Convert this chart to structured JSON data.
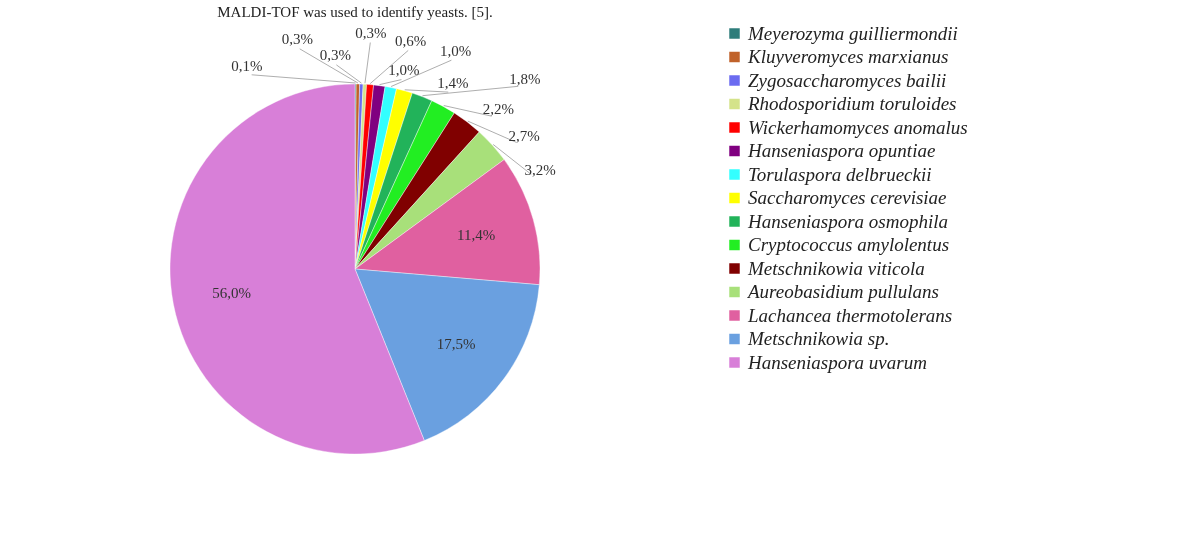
{
  "chart_data": {
    "type": "pie",
    "annotations": [
      "MALDI-TOF was used to identify yeasts. [5]."
    ],
    "categories": [
      "Meyerozyma guilliermondii",
      "Kluyveromyces marxianus",
      "Zygosaccharomyces bailii",
      "Rhodosporidium toruloides",
      "Wickerhamomyces anomalus",
      "Hanseniaspora opuntiae",
      "Torulaspora delbrueckii",
      "Saccharomyces cerevisiae",
      "Hanseniaspora osmophila",
      "Cryptococcus amylolentus",
      "Metschnikowia viticola",
      "Aureobasidium pullulans",
      "Lachancea thermotolerans",
      "Metschnikowia sp.",
      "Hanseniaspora uvarum"
    ],
    "values": [
      0.1,
      0.3,
      0.3,
      0.3,
      0.6,
      1.0,
      1.0,
      1.4,
      1.8,
      2.2,
      2.7,
      3.2,
      11.4,
      17.5,
      56.0
    ],
    "value_labels": [
      "0,1%",
      "0,3%",
      "0,3%",
      "0,3%",
      "0,6%",
      "1,0%",
      "1,0%",
      "1,4%",
      "1,8%",
      "2,2%",
      "2,7%",
      "3,2%",
      "11,4%",
      "17,5%",
      "56,0%"
    ],
    "colors": [
      "#2e7d7b",
      "#c0622a",
      "#6b6bf0",
      "#d4e38a",
      "#ff0000",
      "#800080",
      "#33ffff",
      "#ffff00",
      "#22b35a",
      "#22ee22",
      "#800000",
      "#a8e07a",
      "#e060a0",
      "#6aa0e0",
      "#d87fd8"
    ],
    "legend": "right"
  }
}
